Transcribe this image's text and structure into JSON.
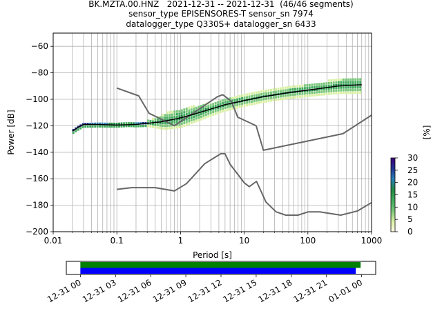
{
  "figure": {
    "title_lines": [
      "BK.MZTA.00.HNZ   2021-12-31 -- 2021-12-31  (46/46 segments)",
      "sensor_type EPISENSORES-T sensor_sn 7974",
      "datalogger_type Q330S+ datalogger_sn 6433"
    ]
  },
  "chart_data": [
    {
      "type": "heatmap",
      "subtype": "probabilistic power spectral density",
      "xlabel": "Period [s]",
      "ylabel": "Power [dB]",
      "x_scale": "log",
      "xlim": [
        0.01,
        1000
      ],
      "ylim": [
        -200,
        -50
      ],
      "x_ticks": [
        0.01,
        0.1,
        1,
        10,
        100,
        1000
      ],
      "x_tick_labels": [
        "0.01",
        "0.1",
        "1",
        "10",
        "100",
        "1000"
      ],
      "y_ticks": [
        -200,
        -180,
        -160,
        -140,
        -120,
        -100,
        -80,
        -60
      ],
      "y_tick_labels": [
        "−200",
        "−180",
        "−160",
        "−140",
        "−120",
        "−100",
        "−80",
        "−60"
      ],
      "grid": true,
      "colorbar": {
        "label": "[%]",
        "range": [
          0,
          30
        ],
        "ticks": [
          0,
          5,
          10,
          15,
          20,
          25,
          30
        ],
        "colors": [
          "#ffffe5",
          "#d9f0a3",
          "#78c679",
          "#41ab5d",
          "#238b45",
          "#2c7fb8",
          "#253494",
          "#3f007d"
        ]
      },
      "mean_curve": [
        [
          0.02,
          -124
        ],
        [
          0.025,
          -121
        ],
        [
          0.03,
          -119
        ],
        [
          0.05,
          -119
        ],
        [
          0.1,
          -119.5
        ],
        [
          0.2,
          -119
        ],
        [
          0.5,
          -117
        ],
        [
          1,
          -114
        ],
        [
          2,
          -110
        ],
        [
          5,
          -104
        ],
        [
          10,
          -101
        ],
        [
          20,
          -98
        ],
        [
          50,
          -95
        ],
        [
          100,
          -93
        ],
        [
          300,
          -90
        ],
        [
          700,
          -89
        ]
      ],
      "density_band": {
        "center": [
          [
            0.02,
            -124
          ],
          [
            0.025,
            -121
          ],
          [
            0.03,
            -119
          ],
          [
            0.05,
            -119
          ],
          [
            0.1,
            -119.5
          ],
          [
            0.2,
            -119
          ],
          [
            0.5,
            -117
          ],
          [
            1,
            -114
          ],
          [
            2,
            -110
          ],
          [
            5,
            -104
          ],
          [
            10,
            -101
          ],
          [
            20,
            -98
          ],
          [
            50,
            -95
          ],
          [
            100,
            -93
          ],
          [
            300,
            -90
          ],
          [
            700,
            -89
          ]
        ],
        "half_width_db": [
          [
            0.02,
            2
          ],
          [
            0.15,
            1
          ],
          [
            0.3,
            2
          ],
          [
            0.6,
            6
          ],
          [
            1,
            7
          ],
          [
            3,
            5
          ],
          [
            10,
            4
          ],
          [
            50,
            4
          ],
          [
            200,
            5
          ],
          [
            700,
            6
          ]
        ]
      },
      "noise_model_high": [
        [
          0.1,
          -91.5
        ],
        [
          0.22,
          -97.4
        ],
        [
          0.32,
          -110.5
        ],
        [
          0.8,
          -120
        ],
        [
          3.8,
          -98
        ],
        [
          4.6,
          -96.5
        ],
        [
          6.3,
          -101.5
        ],
        [
          7.9,
          -113.5
        ],
        [
          15.4,
          -120
        ],
        [
          20,
          -138.5
        ],
        [
          354.8,
          -126
        ],
        [
          1000,
          -112
        ]
      ],
      "noise_model_low": [
        [
          0.1,
          -168
        ],
        [
          0.17,
          -166.7
        ],
        [
          0.4,
          -166.7
        ],
        [
          0.8,
          -169.2
        ],
        [
          1.24,
          -163.7
        ],
        [
          2.4,
          -148.6
        ],
        [
          4.3,
          -141.1
        ],
        [
          5,
          -141.1
        ],
        [
          6,
          -149
        ],
        [
          10,
          -163
        ],
        [
          12,
          -166
        ],
        [
          15.6,
          -162
        ],
        [
          21.9,
          -177.5
        ],
        [
          31.6,
          -185
        ],
        [
          45,
          -187.5
        ],
        [
          70,
          -187.5
        ],
        [
          101,
          -185
        ],
        [
          154,
          -185
        ],
        [
          328,
          -187.5
        ],
        [
          600,
          -184.4
        ],
        [
          1000,
          -178
        ]
      ],
      "segments_timeline": {
        "x_tick_labels": [
          "12-31 00",
          "12-31 03",
          "12-31 06",
          "12-31 09",
          "12-31 12",
          "12-31 15",
          "12-31 18",
          "12-31 21",
          "01-01 00"
        ],
        "x_ticks_hours": [
          0,
          3,
          6,
          9,
          12,
          15,
          18,
          21,
          24
        ],
        "xlim_hours": [
          -1.2,
          25.2
        ],
        "bars": [
          {
            "color": "#008000",
            "start_hour": 0,
            "end_hour": 23.5
          },
          {
            "color": "#0000ff",
            "start_hour": 0,
            "end_hour": 23.5
          }
        ]
      }
    }
  ]
}
